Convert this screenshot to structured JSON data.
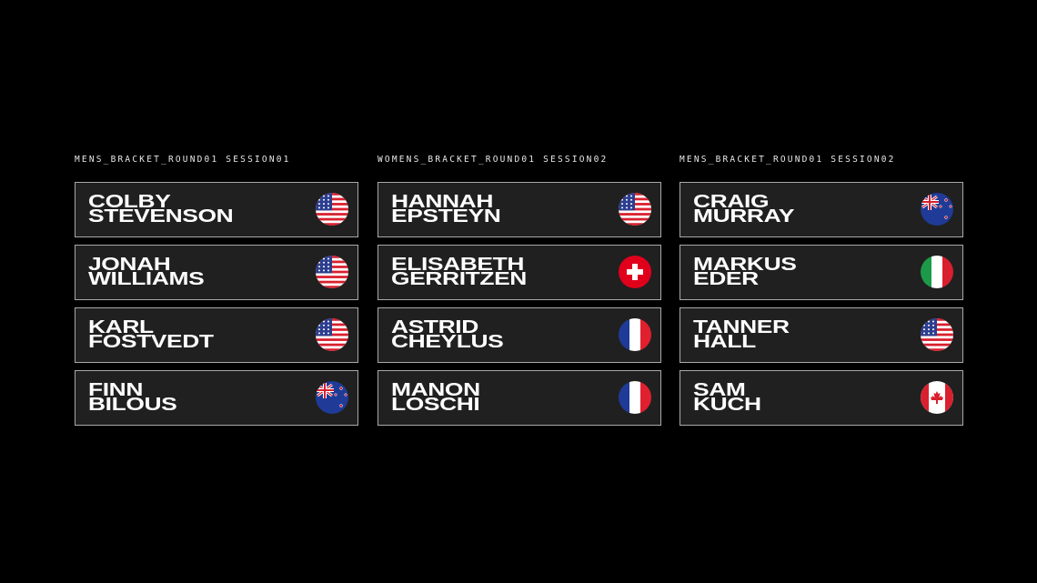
{
  "brackets": [
    {
      "label": "MENS_BRACKET_ROUND01 SESSION01",
      "athletes": [
        {
          "first": "Colby",
          "last": "Stevenson",
          "flag": "us"
        },
        {
          "first": "Jonah",
          "last": "Williams",
          "flag": "us"
        },
        {
          "first": "Karl",
          "last": "Fostvedt",
          "flag": "us"
        },
        {
          "first": "Finn",
          "last": "Bilous",
          "flag": "nz"
        }
      ]
    },
    {
      "label": "WOMENS_BRACKET_ROUND01 SESSION02",
      "athletes": [
        {
          "first": "Hannah",
          "last": "Epsteyn",
          "flag": "us"
        },
        {
          "first": "Elisabeth",
          "last": "Gerritzen",
          "flag": "ch"
        },
        {
          "first": "Astrid",
          "last": "Cheylus",
          "flag": "fr"
        },
        {
          "first": "Manon",
          "last": "Loschi",
          "flag": "fr"
        }
      ]
    },
    {
      "label": "MENS_BRACKET_ROUND01 SESSION02",
      "athletes": [
        {
          "first": "Craig",
          "last": "Murray",
          "flag": "nz"
        },
        {
          "first": "Markus",
          "last": "Eder",
          "flag": "it"
        },
        {
          "first": "Tanner",
          "last": "Hall",
          "flag": "us"
        },
        {
          "first": "Sam",
          "last": "Kuch",
          "flag": "ca"
        }
      ]
    }
  ],
  "colors": {
    "background": "#000000",
    "card": "#202020",
    "border": "#a9a9a9",
    "text": "#ffffff"
  }
}
